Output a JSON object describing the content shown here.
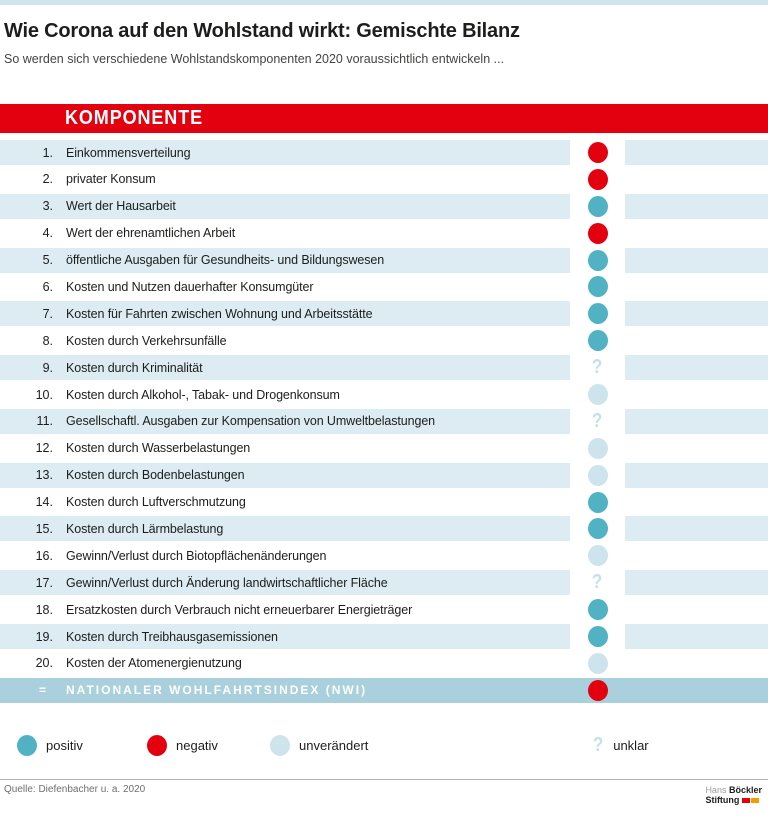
{
  "header": {
    "title": "Wie Corona auf den Wohlstand wirkt: Gemischte Bilanz",
    "subtitle": "So werden sich verschiedene Wohlstandskomponenten 2020 voraussichtlich entwickeln ..."
  },
  "colors": {
    "accent_red": "#e3000f",
    "positive": "#50b2c2",
    "negative": "#e3000f",
    "unchanged": "#cde4ed",
    "unclear": "#c6e0ea",
    "row_stripe": "#dcecf2",
    "summary_band": "#a9d0dc",
    "topbar": "#cfe5ec"
  },
  "chart_data": {
    "type": "table",
    "title": "Wie Corona auf den Wohlstand wirkt: Gemischte Bilanz",
    "subtitle": "So werden sich verschiedene Wohlstandskomponenten 2020 voraussichtlich entwickeln ...",
    "column_header": "KOMPONENTE",
    "legend_position": "bottom",
    "rows": [
      {
        "num": "1.",
        "label": "Einkommensverteilung",
        "status": "negativ"
      },
      {
        "num": "2.",
        "label": "privater Konsum",
        "status": "negativ"
      },
      {
        "num": "3.",
        "label": "Wert der Hausarbeit",
        "status": "positiv"
      },
      {
        "num": "4.",
        "label": "Wert der ehrenamtlichen Arbeit",
        "status": "negativ"
      },
      {
        "num": "5.",
        "label": "öffentliche Ausgaben für Gesundheits- und Bildungswesen",
        "status": "positiv"
      },
      {
        "num": "6.",
        "label": "Kosten und Nutzen dauerhafter Konsumgüter",
        "status": "positiv"
      },
      {
        "num": "7.",
        "label": "Kosten für Fahrten zwischen Wohnung und Arbeitsstätte",
        "status": "positiv"
      },
      {
        "num": "8.",
        "label": "Kosten durch Verkehrsunfälle",
        "status": "positiv"
      },
      {
        "num": "9.",
        "label": "Kosten durch Kriminalität",
        "status": "unklar"
      },
      {
        "num": "10.",
        "label": "Kosten durch Alkohol-, Tabak- und Drogenkonsum",
        "status": "unverändert"
      },
      {
        "num": "11.",
        "label": "Gesellschaftl. Ausgaben zur Kompensation von Umweltbelastungen",
        "status": "unklar"
      },
      {
        "num": "12.",
        "label": "Kosten durch Wasserbelastungen",
        "status": "unverändert"
      },
      {
        "num": "13.",
        "label": "Kosten durch Bodenbelastungen",
        "status": "unverändert"
      },
      {
        "num": "14.",
        "label": "Kosten durch Luftverschmutzung",
        "status": "positiv"
      },
      {
        "num": "15.",
        "label": "Kosten durch Lärmbelastung",
        "status": "positiv"
      },
      {
        "num": "16.",
        "label": "Gewinn/Verlust durch Biotopflächenänderungen",
        "status": "unverändert"
      },
      {
        "num": "17.",
        "label": "Gewinn/Verlust durch Änderung landwirtschaftlicher Fläche",
        "status": "unklar"
      },
      {
        "num": "18.",
        "label": "Ersatzkosten durch Verbrauch nicht erneuerbarer Energieträger",
        "status": "positiv"
      },
      {
        "num": "19.",
        "label": "Kosten durch Treibhausgasemissionen",
        "status": "positiv"
      },
      {
        "num": "20.",
        "label": "Kosten der Atomenergienutzung",
        "status": "unverändert"
      }
    ],
    "summary_row": {
      "num": "=",
      "label": "NATIONALER WOHLFAHRTSINDEX (NWI)",
      "status": "negativ"
    },
    "legend": [
      {
        "label": "positiv",
        "status": "positiv"
      },
      {
        "label": "negativ",
        "status": "negativ"
      },
      {
        "label": "unverändert",
        "status": "unverändert"
      },
      {
        "label": "unklar",
        "status": "unklar"
      }
    ]
  },
  "footer": {
    "source": "Quelle: Diefenbacher u. a. 2020",
    "logo": {
      "line1_light": "Hans",
      "line1_bold": "Böckler",
      "line2_bold": "Stiftung"
    }
  }
}
